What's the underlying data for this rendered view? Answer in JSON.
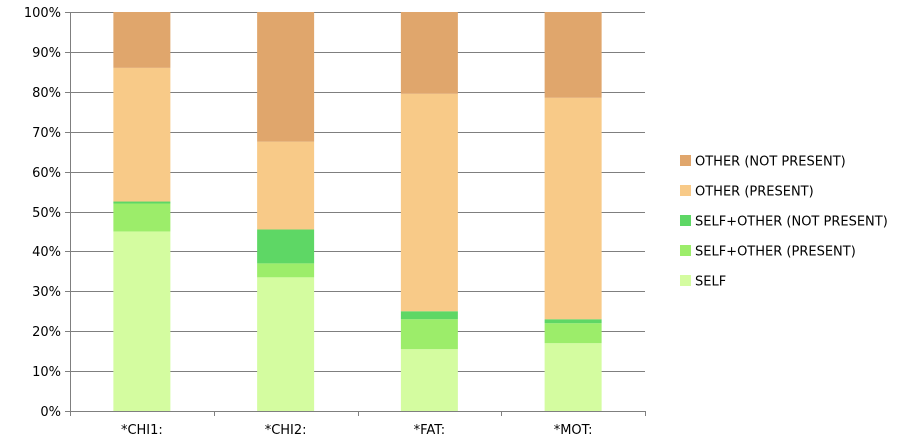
{
  "chart_data": {
    "type": "bar",
    "stacked": true,
    "percent": true,
    "categories": [
      "*CHI1:",
      "*CHI2:",
      "*FAT:",
      "*MOT:"
    ],
    "series": [
      {
        "name": "SELF",
        "color": "#d4fca0",
        "values": [
          45,
          33.5,
          15.5,
          17
        ]
      },
      {
        "name": "SELF+OTHER (PRESENT)",
        "color": "#9ced6a",
        "values": [
          7,
          3.5,
          7.5,
          5
        ]
      },
      {
        "name": "SELF+OTHER (NOT PRESENT)",
        "color": "#5ed765",
        "values": [
          0.5,
          8.5,
          2,
          1
        ]
      },
      {
        "name": "OTHER (PRESENT)",
        "color": "#f8ca88",
        "values": [
          33.5,
          22,
          54.5,
          55.5
        ]
      },
      {
        "name": "OTHER (NOT PRESENT)",
        "color": "#e0a66c",
        "values": [
          14,
          32.5,
          20.5,
          21.5
        ]
      }
    ],
    "ylim": [
      0,
      100
    ],
    "yticks": [
      "0%",
      "10%",
      "20%",
      "30%",
      "40%",
      "50%",
      "60%",
      "70%",
      "80%",
      "90%",
      "100%"
    ],
    "grid": true,
    "legend": "right",
    "legend_order": [
      "OTHER (NOT PRESENT)",
      "OTHER (PRESENT)",
      "SELF+OTHER (NOT PRESENT)",
      "SELF+OTHER (PRESENT)",
      "SELF"
    ]
  }
}
